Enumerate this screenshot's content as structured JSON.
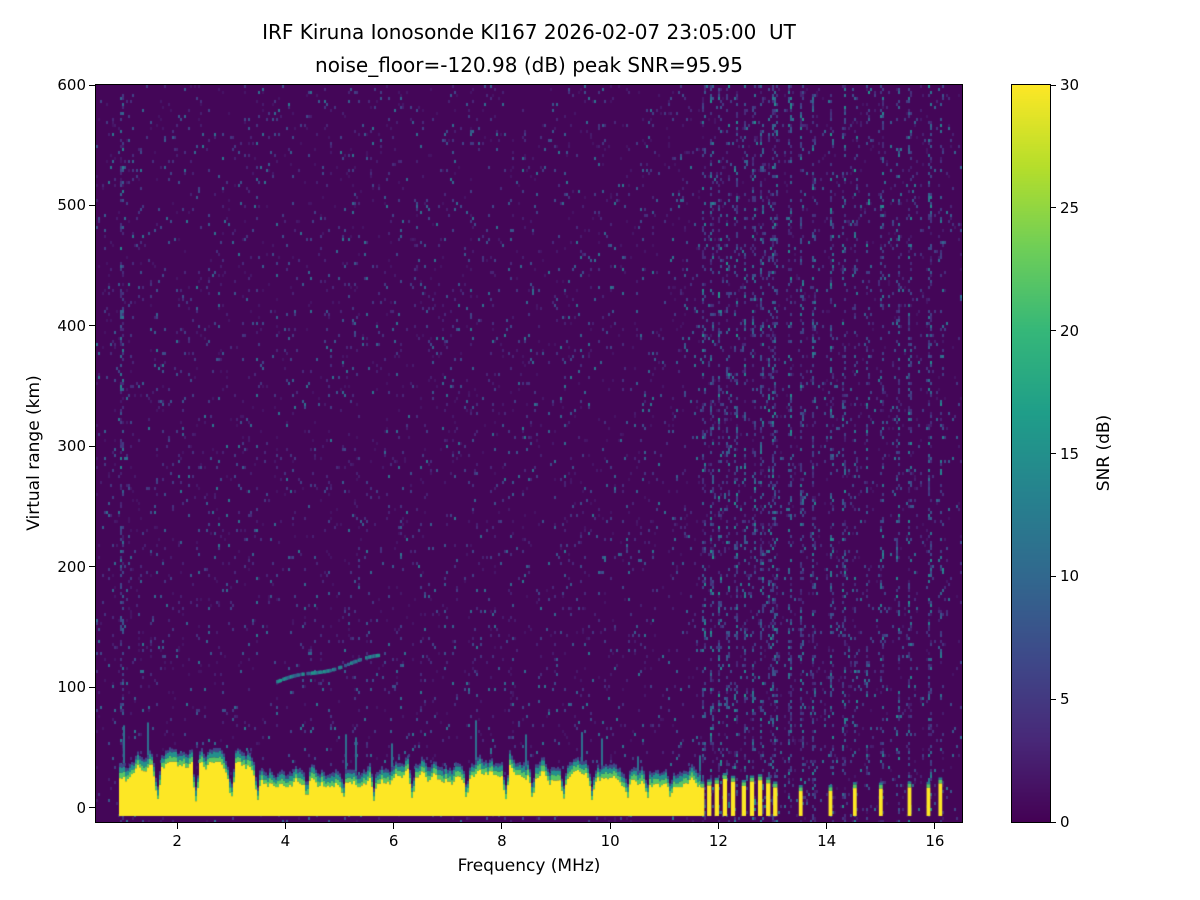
{
  "chart_data": {
    "type": "heatmap",
    "title": "IRF Kiruna Ionosonde KI167 2026-02-07 23:05:00  UT",
    "subtitle": "noise_floor=-120.98 (dB) peak SNR=95.95",
    "xlabel": "Frequency (MHz)",
    "ylabel": "Virtual range (km)",
    "xlim": [
      0.5,
      16.5
    ],
    "ylim": [
      -12,
      600
    ],
    "xticks": [
      2,
      4,
      6,
      8,
      10,
      12,
      14,
      16
    ],
    "yticks": [
      0,
      100,
      200,
      300,
      400,
      500,
      600
    ],
    "colorbar": {
      "label": "SNR (dB)",
      "ticks": [
        0,
        5,
        10,
        15,
        20,
        25,
        30
      ],
      "clim": [
        0,
        30
      ],
      "colormap": "viridis"
    },
    "colormap_anchors": [
      "#440154",
      "#482878",
      "#3e4989",
      "#31688e",
      "#26828e",
      "#1f9e89",
      "#35b779",
      "#6ece58",
      "#b5de2b",
      "#fde725"
    ],
    "background_snr": 0.4,
    "noise_speckle": {
      "seed": 167,
      "density": 0.055,
      "snr_min": 1.5,
      "snr_max": 12
    },
    "rfi_stripes": {
      "freqs": [
        0.97,
        11.7,
        11.85,
        12.0,
        12.15,
        12.3,
        12.5,
        12.65,
        12.8,
        12.95,
        13.05,
        13.3,
        13.52,
        13.75,
        14.07,
        14.3,
        14.52,
        14.75,
        15.0,
        15.3,
        15.53,
        15.88,
        16.1
      ],
      "halfwidth": 0.04,
      "density_mult": 5,
      "snr_boost": 4
    },
    "ground_clutter": {
      "freq_start": 0.93,
      "freq_end": 11.65,
      "base_top_km": 26,
      "bottom_km": -7,
      "peak_snr": 30,
      "notch_freqs": [
        1.62,
        2.33,
        2.98,
        3.47,
        4.38,
        5.05,
        5.62,
        6.33,
        7.33,
        8.05,
        8.55,
        9.12,
        9.65,
        10.3,
        10.67,
        11.1
      ]
    },
    "intermittent_bars": {
      "freqs": [
        11.7,
        11.83,
        11.97,
        12.12,
        12.27,
        12.47,
        12.62,
        12.77,
        12.92,
        13.05
      ],
      "width": 0.08,
      "top_km": 20
    },
    "isolated_bars": {
      "freqs": [
        13.52,
        14.07,
        14.52,
        15.0,
        15.53,
        15.88,
        16.1
      ],
      "width": 0.07,
      "top_km": 17
    },
    "echo_trace": {
      "freq_start": 3.8,
      "freq_end": 5.75,
      "range_start": 104,
      "range_end": 126,
      "snr": 11
    }
  }
}
